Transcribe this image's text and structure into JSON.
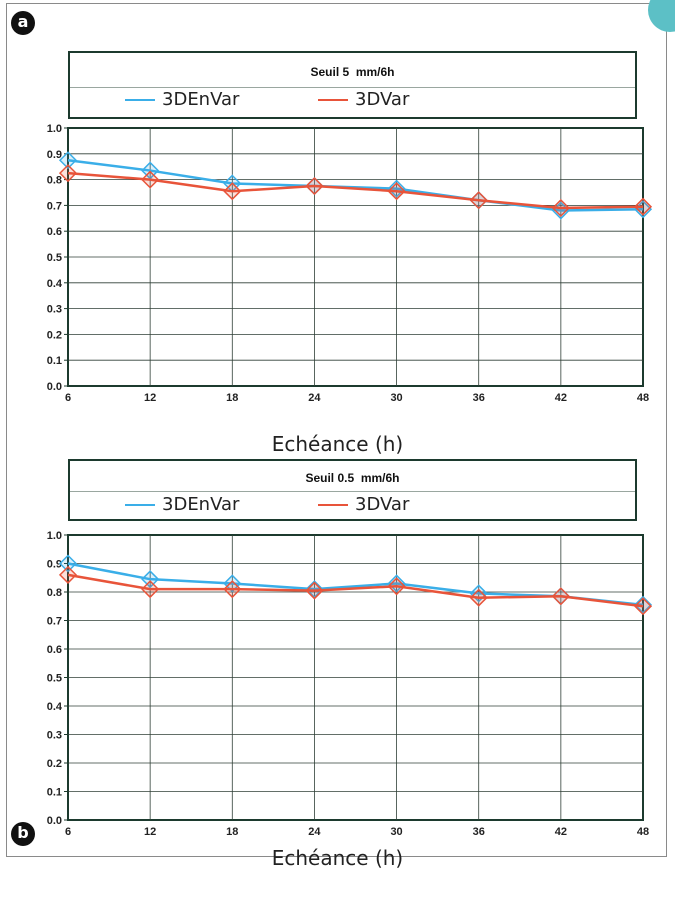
{
  "figure": {
    "panel_a_badge": "a",
    "panel_b_badge": "b"
  },
  "colors": {
    "series_3DEnVar": "#3aaee8",
    "series_3DVar": "#e8543a",
    "grid": "#2f3f36",
    "axes": "#1c3a2e",
    "corner_tab": "#5cc0c6"
  },
  "chart_data": [
    {
      "type": "line",
      "title": "Seuil 5  mm/6h",
      "xlabel": "Echéance (h)",
      "ylabel": "",
      "x": [
        6,
        12,
        18,
        24,
        30,
        36,
        42,
        48
      ],
      "xlim": [
        6,
        48
      ],
      "ylim": [
        0,
        1
      ],
      "xticks": [
        "6",
        "12",
        "18",
        "24",
        "30",
        "36",
        "42",
        "48"
      ],
      "yticks": [
        "0.0",
        "0.1",
        "0.2",
        "0.3",
        "0.4",
        "0.5",
        "0.6",
        "0.7",
        "0.8",
        "0.9",
        "1.0"
      ],
      "grid": true,
      "legend_placement": "top",
      "markers": "diamond",
      "series": [
        {
          "name": "3DEnVar",
          "values": [
            0.875,
            0.835,
            0.785,
            0.775,
            0.765,
            0.72,
            0.68,
            0.685
          ]
        },
        {
          "name": "3DVar",
          "values": [
            0.825,
            0.8,
            0.755,
            0.775,
            0.755,
            0.72,
            0.69,
            0.695
          ]
        }
      ]
    },
    {
      "type": "line",
      "title": "Seuil 0.5  mm/6h",
      "xlabel": "Echéance (h)",
      "ylabel": "",
      "x": [
        6,
        12,
        18,
        24,
        30,
        36,
        42,
        48
      ],
      "xlim": [
        6,
        48
      ],
      "ylim": [
        0,
        1
      ],
      "xticks": [
        "6",
        "12",
        "18",
        "24",
        "30",
        "36",
        "42",
        "48"
      ],
      "yticks": [
        "0.0",
        "0.1",
        "0.2",
        "0.3",
        "0.4",
        "0.5",
        "0.6",
        "0.7",
        "0.8",
        "0.9",
        "1.0"
      ],
      "grid": true,
      "legend_placement": "top",
      "markers": "diamond",
      "series": [
        {
          "name": "3DEnVar",
          "values": [
            0.9,
            0.845,
            0.83,
            0.81,
            0.83,
            0.795,
            0.785,
            0.755
          ]
        },
        {
          "name": "3DVar",
          "values": [
            0.86,
            0.81,
            0.81,
            0.805,
            0.82,
            0.78,
            0.785,
            0.75
          ]
        }
      ]
    }
  ]
}
